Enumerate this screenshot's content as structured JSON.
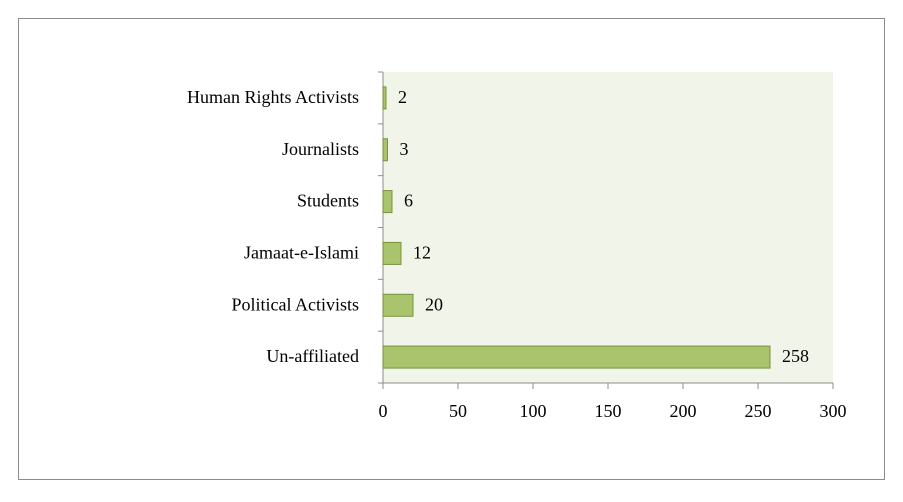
{
  "chart_data": {
    "type": "bar",
    "orientation": "horizontal",
    "categories": [
      "Human Rights Activists",
      "Journalists",
      "Students",
      "Jamaat-e-Islami",
      "Political Activists",
      "Un-affiliated"
    ],
    "values": [
      2,
      3,
      6,
      12,
      20,
      258
    ],
    "color": "#a9c46c",
    "xlim": [
      0,
      300
    ],
    "xticks": [
      0,
      50,
      100,
      150,
      200,
      250,
      300
    ],
    "grid": false
  }
}
